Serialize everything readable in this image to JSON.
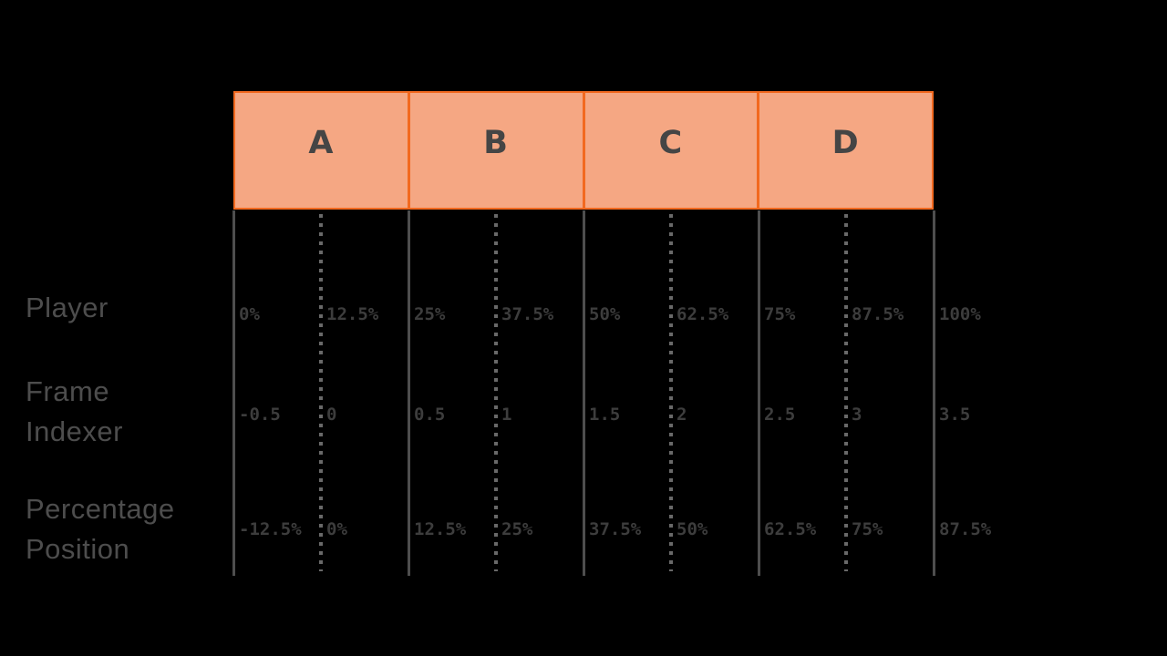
{
  "frames": [
    "A",
    "B",
    "C",
    "D"
  ],
  "rows": [
    {
      "label": "Player",
      "values": [
        "0%",
        "12.5%",
        "25%",
        "37.5%",
        "50%",
        "62.5%",
        "75%",
        "87.5%",
        "100%"
      ]
    },
    {
      "label": "Frame Indexer",
      "values": [
        "-0.5",
        "0",
        "0.5",
        "1",
        "1.5",
        "2",
        "2.5",
        "3",
        "3.5"
      ]
    },
    {
      "label": "Percentage Position",
      "values": [
        "-12.5%",
        "0%",
        "12.5%",
        "25%",
        "37.5%",
        "50%",
        "62.5%",
        "75%",
        "87.5%"
      ]
    }
  ],
  "colors": {
    "background": "#000000",
    "frame_fill": "#F5A783",
    "frame_border": "#F2691F",
    "frame_letter": "#454545",
    "solid_line": "#4E4E4E",
    "dotted_line": "#696969",
    "value_text": "#3D3D3D",
    "label_text": "#4D4D4D"
  }
}
